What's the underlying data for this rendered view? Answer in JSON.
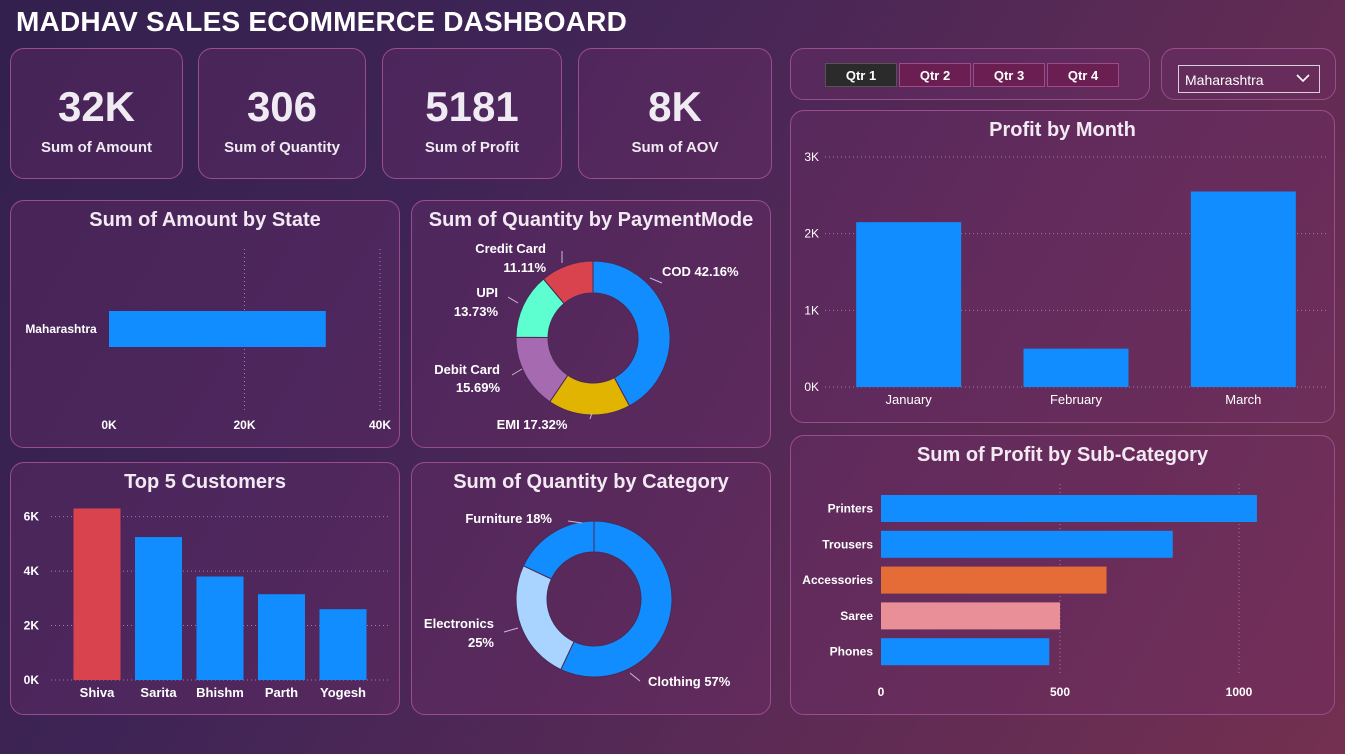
{
  "title": "MADHAV SALES ECOMMERCE DASHBOARD",
  "kpis": [
    {
      "value": "32K",
      "label": "Sum of Amount"
    },
    {
      "value": "306",
      "label": "Sum of Quantity"
    },
    {
      "value": "5181",
      "label": "Sum of Profit"
    },
    {
      "value": "8K",
      "label": "Sum of AOV"
    }
  ],
  "quarter_slicer": {
    "options": [
      "Qtr 1",
      "Qtr 2",
      "Qtr 3",
      "Qtr 4"
    ],
    "selected": "Qtr 1"
  },
  "state_dropdown": {
    "value": "Maharashtra",
    "icon": "chevron-down-icon"
  },
  "colors": {
    "blue": "#118dff",
    "red": "#d9434e",
    "orange": "#e66c37",
    "pink": "#e88f98",
    "teal": "#5dffd0",
    "purple": "#a66ab0",
    "gold": "#e0b400",
    "lightblue": "#a8d4ff"
  },
  "chart_data": [
    {
      "id": "amount_by_state",
      "type": "bar",
      "orientation": "horizontal",
      "title": "Sum of Amount by State",
      "categories": [
        "Maharashtra"
      ],
      "values": [
        32000
      ],
      "xlim": [
        0,
        40000
      ],
      "ticks": [
        "0K",
        "20K",
        "40K"
      ],
      "grid": true
    },
    {
      "id": "quantity_by_paymentmode",
      "type": "pie",
      "variant": "donut",
      "title": "Sum of Quantity by PaymentMode",
      "slices": [
        {
          "label": "COD",
          "pct_text": "42.16%",
          "value": 42.16,
          "color": "#118dff"
        },
        {
          "label": "EMI",
          "pct_text": "17.32%",
          "value": 17.32,
          "color": "#e0b400"
        },
        {
          "label": "Debit Card",
          "pct_text": "15.69%",
          "value": 15.69,
          "color": "#a66ab0"
        },
        {
          "label": "UPI",
          "pct_text": "13.73%",
          "value": 13.73,
          "color": "#5dffd0"
        },
        {
          "label": "Credit Card",
          "pct_text": "11.11%",
          "value": 11.11,
          "color": "#d9434e"
        }
      ],
      "label_texts": [
        "COD 42.16%",
        "EMI 17.32%",
        "Debit Card",
        "15.69%",
        "UPI",
        "13.73%",
        "Credit Card",
        "11.11%"
      ]
    },
    {
      "id": "profit_by_month",
      "type": "bar",
      "title": "Profit by Month",
      "categories": [
        "January",
        "February",
        "March"
      ],
      "values": [
        2150,
        500,
        2550
      ],
      "ylim": [
        0,
        3000
      ],
      "ticks": [
        "0K",
        "1K",
        "2K",
        "3K"
      ],
      "grid": true
    },
    {
      "id": "top5_customers",
      "type": "bar",
      "title": "Top 5 Customers",
      "categories": [
        "Shiva",
        "Sarita",
        "Bhishm",
        "Parth",
        "Yogesh"
      ],
      "values": [
        6300,
        5250,
        3800,
        3150,
        2600
      ],
      "ylim": [
        0,
        6500
      ],
      "ticks": [
        "0K",
        "2K",
        "4K",
        "6K"
      ],
      "highlight_color": "#d9434e",
      "grid": true
    },
    {
      "id": "quantity_by_category",
      "type": "pie",
      "variant": "donut",
      "title": "Sum of Quantity by Category",
      "slices": [
        {
          "label": "Clothing",
          "pct_text": "57%",
          "value": 57,
          "color": "#118dff"
        },
        {
          "label": "Electronics",
          "pct_text": "25%",
          "value": 25,
          "color": "#a8d4ff"
        },
        {
          "label": "Furniture",
          "pct_text": "18%",
          "value": 18,
          "color": "#118dff"
        }
      ],
      "label_texts": [
        "Furniture 18%",
        "Electronics",
        "25%",
        "Clothing 57%"
      ]
    },
    {
      "id": "profit_by_subcategory",
      "type": "bar",
      "orientation": "horizontal",
      "title": "Sum of Profit by Sub-Category",
      "categories": [
        "Printers",
        "Trousers",
        "Accessories",
        "Saree",
        "Phones"
      ],
      "values": [
        1050,
        815,
        630,
        500,
        470
      ],
      "colors": [
        "#118dff",
        "#118dff",
        "#e66c37",
        "#e88f98",
        "#118dff"
      ],
      "xlim": [
        0,
        1100
      ],
      "ticks": [
        "0",
        "500",
        "1000"
      ],
      "grid": true
    }
  ]
}
